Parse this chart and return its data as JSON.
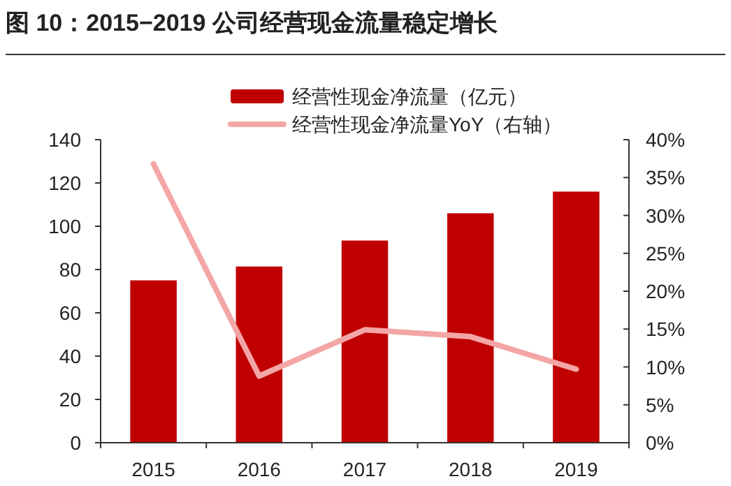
{
  "chart_data": {
    "type": "bar",
    "title": "图 10：2015−2019 公司经营现金流量稳定增长",
    "categories": [
      "2015",
      "2016",
      "2017",
      "2018",
      "2019"
    ],
    "series": [
      {
        "name": "经营性现金净流量（亿元）",
        "color": "#c00000",
        "values": [
          75,
          81.4,
          93.4,
          106,
          116
        ]
      },
      {
        "name": "经营性现金净流量YoY（右轴）",
        "type": "line",
        "axis": "y2",
        "color": "#f4a6a6",
        "values": [
          36.8,
          8.8,
          14.9,
          14,
          9.7
        ]
      }
    ],
    "ylim": [
      0,
      140
    ],
    "yticks": [
      0,
      20,
      40,
      60,
      80,
      100,
      120,
      140
    ],
    "y2lim": [
      0,
      40
    ],
    "y2ticks": [
      {
        "value": 0,
        "label": "0%"
      },
      {
        "value": 5,
        "label": "5%"
      },
      {
        "value": 10,
        "label": "10%"
      },
      {
        "value": 15,
        "label": "15%"
      },
      {
        "value": 20,
        "label": "20%"
      },
      {
        "value": 25,
        "label": "25%"
      },
      {
        "value": 30,
        "label": "30%"
      },
      {
        "value": 35,
        "label": "35%"
      },
      {
        "value": 40,
        "label": "40%"
      }
    ],
    "legend": "top",
    "grid": false
  }
}
